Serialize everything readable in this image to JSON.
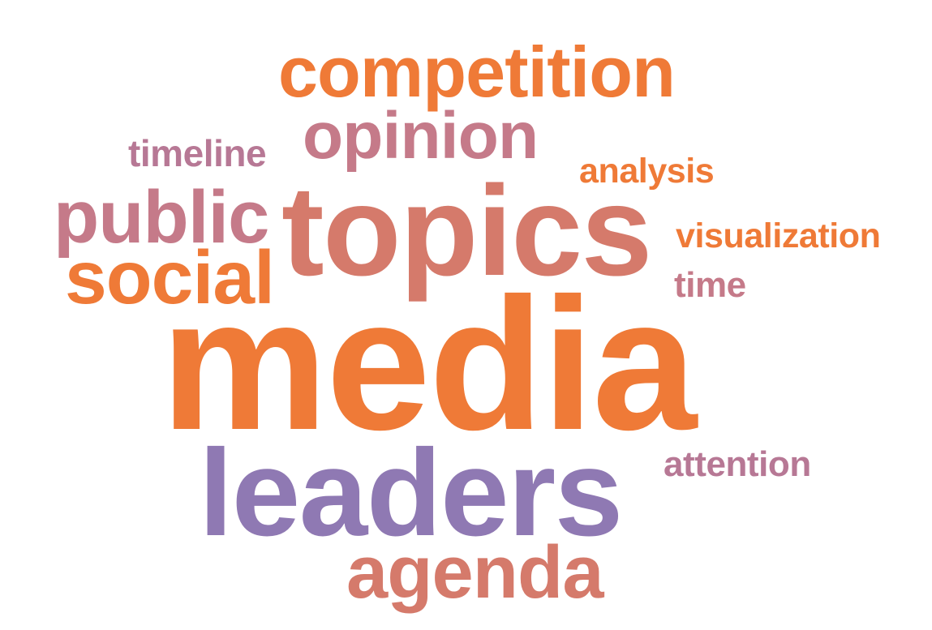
{
  "colors": {
    "orange": "#ef7a37",
    "salmon": "#d57a6b",
    "rose": "#c57a89",
    "purple": "#8f79b3",
    "mauve": "#b77895"
  },
  "words": {
    "competition": "competition",
    "opinion": "opinion",
    "timeline": "timeline",
    "analysis": "analysis",
    "public": "public",
    "topics": "topics",
    "visualization": "visualization",
    "social": "social",
    "time": "time",
    "media": "media",
    "leaders": "leaders",
    "attention": "attention",
    "agenda": "agenda"
  },
  "word_colors": {
    "competition": "#ef7a37",
    "opinion": "#c57a89",
    "timeline": "#b77895",
    "analysis": "#ef7a37",
    "public": "#c57a89",
    "topics": "#d57a6b",
    "visualization": "#ef7a37",
    "social": "#ef7a37",
    "time": "#c57a89",
    "media": "#ef7a37",
    "leaders": "#8f79b3",
    "attention": "#b77895",
    "agenda": "#d57a6b"
  }
}
